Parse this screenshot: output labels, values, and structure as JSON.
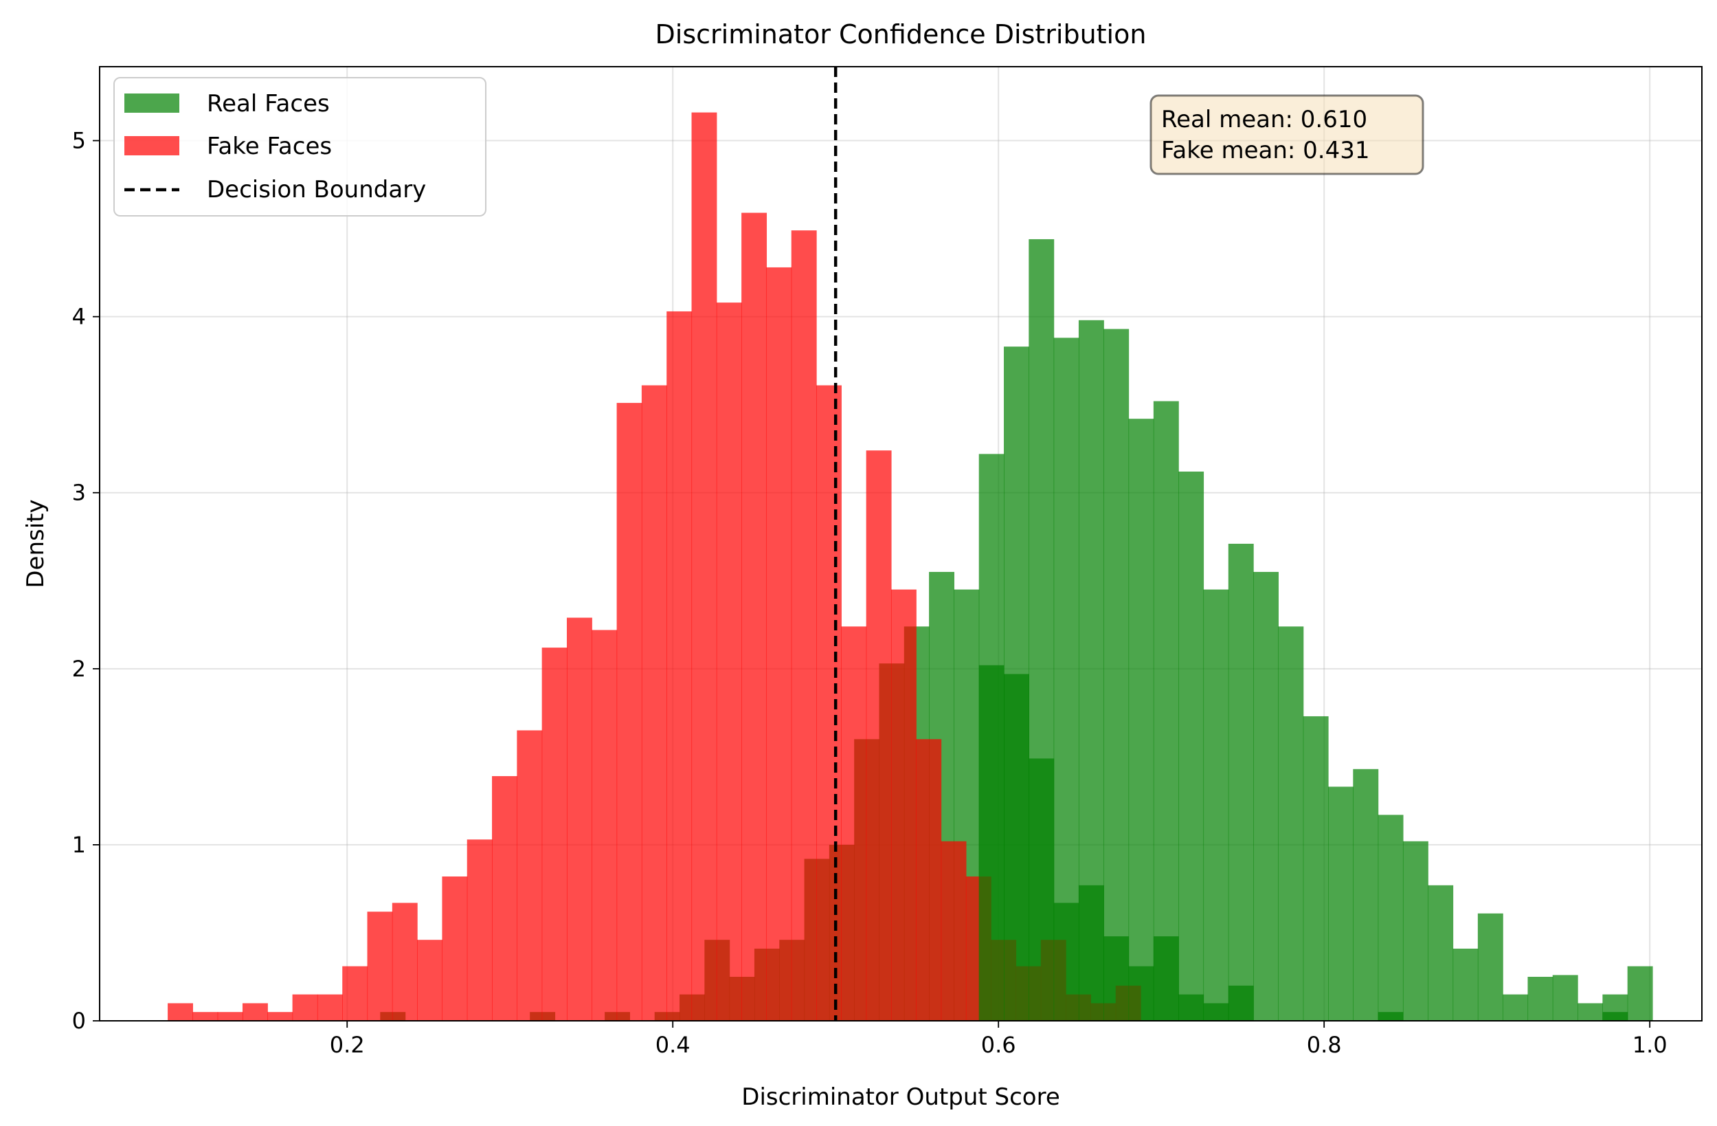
{
  "chart_data": {
    "type": "histogram",
    "title": "Discriminator Confidence Distribution",
    "xlabel": "Discriminator Output Score",
    "ylabel": "Density",
    "xlim": [
      0.048,
      1.032
    ],
    "ylim": [
      0,
      5.42
    ],
    "xticks": [
      0.2,
      0.4,
      0.6,
      0.8,
      1.0
    ],
    "xtick_labels": [
      "0.2",
      "0.4",
      "0.6",
      "0.8",
      "1.0"
    ],
    "yticks": [
      0,
      1,
      2,
      3,
      4,
      5
    ],
    "ytick_labels": [
      "0",
      "1",
      "2",
      "3",
      "4",
      "5"
    ],
    "grid": true,
    "legend_position": "top-left",
    "series": [
      {
        "name": "Real Faces",
        "color": "#008000",
        "opacity": 0.7,
        "bin_start": 0.2203,
        "bin_width": 0.01532,
        "densities": [
          0.05,
          0,
          0,
          0,
          0,
          0,
          0.05,
          0,
          0,
          0.05,
          0,
          0.05,
          0.15,
          0.46,
          0.25,
          0.41,
          0.46,
          0.92,
          1.0,
          1.6,
          2.03,
          2.24,
          2.55,
          2.45,
          2.02,
          1.97,
          1.49,
          0.67,
          0.77,
          0.48,
          0.31,
          0.48,
          0.15,
          0.1,
          0.2,
          0,
          0,
          0,
          0,
          0,
          0.05,
          0,
          0,
          0,
          0,
          0,
          0,
          0,
          0,
          0.05
        ],
        "overlap_densities": [
          0,
          0,
          0,
          0,
          0,
          0,
          0,
          0,
          0,
          0,
          0,
          0,
          0,
          0,
          0,
          0,
          0,
          0,
          0,
          0,
          0,
          0,
          0,
          0,
          3.22,
          3.83,
          4.44,
          3.88,
          3.98,
          3.93,
          3.42,
          3.52,
          3.12,
          2.45,
          2.71,
          2.55,
          2.24,
          1.73,
          1.33,
          1.43,
          1.17,
          1.02,
          0.77,
          0.41,
          0.61,
          0.15,
          0.25,
          0.26,
          0.1,
          0.15,
          0.31,
          0,
          0,
          0,
          0,
          0.05
        ]
      },
      {
        "name": "Fake Faces",
        "color": "#ff0000",
        "opacity": 0.7,
        "bin_start": 0.0898,
        "bin_width": 0.01532,
        "densities": [
          0.1,
          0.05,
          0.05,
          0.1,
          0.05,
          0.15,
          0.15,
          0.31,
          0.62,
          0.67,
          0.46,
          0.82,
          1.03,
          1.39,
          1.65,
          2.12,
          2.29,
          2.22,
          3.51,
          3.61,
          4.03,
          5.16,
          4.08,
          4.59,
          4.28,
          4.49,
          3.61,
          2.24,
          3.24,
          2.45,
          1.6,
          1.02,
          0.82,
          0.46,
          0.31,
          0.46,
          0.15,
          0.1,
          0.2
        ]
      }
    ],
    "decision_boundary": {
      "name": "Decision Boundary",
      "x": 0.5
    },
    "annotations": {
      "real_mean": "Real mean: 0.610",
      "fake_mean": "Fake mean: 0.431"
    }
  }
}
